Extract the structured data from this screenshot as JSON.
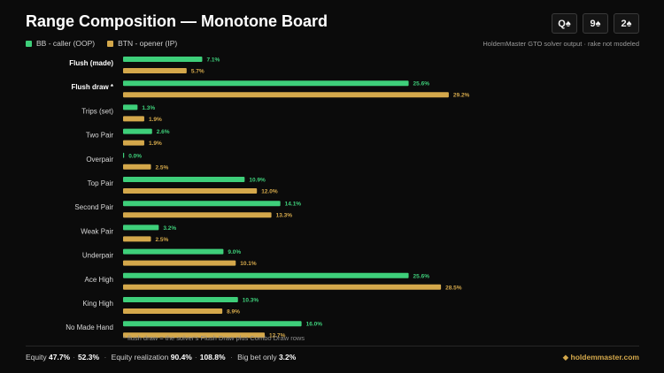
{
  "header": {
    "title": "Range Composition — Monotone Board",
    "board_cards": [
      "Q♠",
      "9♠",
      "2♠"
    ]
  },
  "source_note": "HoldemMaster GTO solver output · rake not modeled",
  "colors": {
    "caller": "#3ecf7a",
    "opener": "#d4a84b",
    "background": "#0b0b0b"
  },
  "chart_data": {
    "type": "bar",
    "orientation": "horizontal",
    "categories": [
      "Flush (made)",
      "Flush draw *",
      "Trips (set)",
      "Two Pair",
      "Overpair",
      "Top Pair",
      "Second Pair",
      "Weak Pair",
      "Underpair",
      "Ace High",
      "King High",
      "No Made Hand"
    ],
    "bold_categories": [
      "Flush (made)",
      "Flush draw *"
    ],
    "series": [
      {
        "name": "BB - caller (OOP)",
        "values": [
          7.1,
          25.6,
          1.3,
          2.6,
          0.0,
          10.9,
          14.1,
          3.2,
          9.0,
          25.6,
          10.3,
          16.0
        ]
      },
      {
        "name": "BTN - opener (IP)",
        "values": [
          5.7,
          29.2,
          1.9,
          1.9,
          2.5,
          12.0,
          13.3,
          2.5,
          10.1,
          28.5,
          8.9,
          12.7
        ]
      }
    ],
    "value_suffix": "%",
    "legend_position": "top-left",
    "grid": false
  },
  "footnote": "* flush draw = the solver's Flush Draw plus Combo Draw rows",
  "footer": {
    "equity_label": "Equity",
    "equity_bb": "47.7%",
    "equity_btn": "52.3%",
    "realization_label": "Equity realization",
    "realization_bb": "90.4%",
    "realization_btn": "108.8%",
    "bigbet_label": "Big bet only",
    "bigbet_value": "3.2%",
    "brand": "◆ holdemmaster.com"
  }
}
